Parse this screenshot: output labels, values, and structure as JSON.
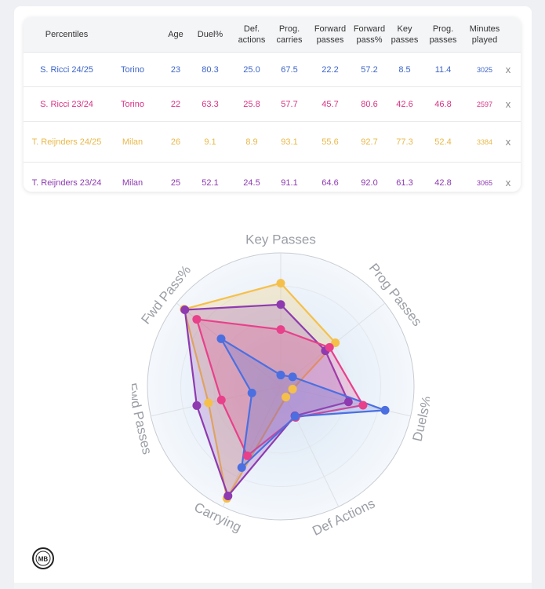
{
  "table": {
    "headers": [
      "Percentiles",
      "",
      "Age",
      "Duel%",
      "Def. actions",
      "Prog. carries",
      "Forward passes",
      "Forward pass%",
      "Key passes",
      "Prog. passes",
      "Minutes played"
    ],
    "rows": [
      {
        "player": "S. Ricci 24/25",
        "team": "Torino",
        "age": "23",
        "duel": "80.3",
        "def": "25.0",
        "carries": "67.5",
        "fwd_passes": "22.2",
        "fwd_pct": "57.2",
        "key": "8.5",
        "prog": "11.4",
        "minutes": "3025",
        "remove": "x",
        "color": "#3d64c8"
      },
      {
        "player": "S. Ricci 23/24",
        "team": "Torino",
        "age": "22",
        "duel": "63.3",
        "def": "25.8",
        "carries": "57.7",
        "fwd_passes": "45.7",
        "fwd_pct": "80.6",
        "key": "42.6",
        "prog": "46.8",
        "minutes": "2597",
        "remove": "x",
        "color": "#d63384"
      },
      {
        "player": "T. Reijnders 24/25",
        "team": "Milan",
        "age": "26",
        "duel": "9.1",
        "def": "8.9",
        "carries": "93.1",
        "fwd_passes": "55.6",
        "fwd_pct": "92.7",
        "key": "77.3",
        "prog": "52.4",
        "minutes": "3384",
        "remove": "x",
        "color": "#e8b84a"
      },
      {
        "player": "T. Reijnders 23/24",
        "team": "Milan",
        "age": "25",
        "duel": "52.1",
        "def": "24.5",
        "carries": "91.1",
        "fwd_passes": "64.6",
        "fwd_pct": "92.0",
        "key": "61.3",
        "prog": "42.8",
        "minutes": "3065",
        "remove": "x",
        "color": "#8e3ab0"
      }
    ]
  },
  "chart_data": {
    "type": "radar",
    "axes": [
      "Key Passes",
      "Prog Passes",
      "Duels%",
      "Def Actions",
      "Carrying",
      "Fwd Passes",
      "Fwd Pass%"
    ],
    "range": [
      0,
      100
    ],
    "series": [
      {
        "name": "S. Ricci 24/25",
        "color": "#4b6fe0",
        "values": [
          8.5,
          11.4,
          80.3,
          25.0,
          67.5,
          22.2,
          57.2
        ]
      },
      {
        "name": "S. Ricci 23/24",
        "color": "#e8408a",
        "values": [
          42.6,
          46.8,
          63.3,
          25.8,
          57.7,
          45.7,
          80.6
        ]
      },
      {
        "name": "T. Reijnders 24/25",
        "color": "#f5c04a",
        "values": [
          77.3,
          52.4,
          9.1,
          8.9,
          93.1,
          55.6,
          92.7
        ]
      },
      {
        "name": "T. Reijnders 23/24",
        "color": "#8e3ab0",
        "values": [
          61.3,
          42.8,
          52.1,
          24.5,
          91.1,
          64.6,
          92.0
        ]
      }
    ]
  },
  "logo": {
    "text": "MB"
  }
}
